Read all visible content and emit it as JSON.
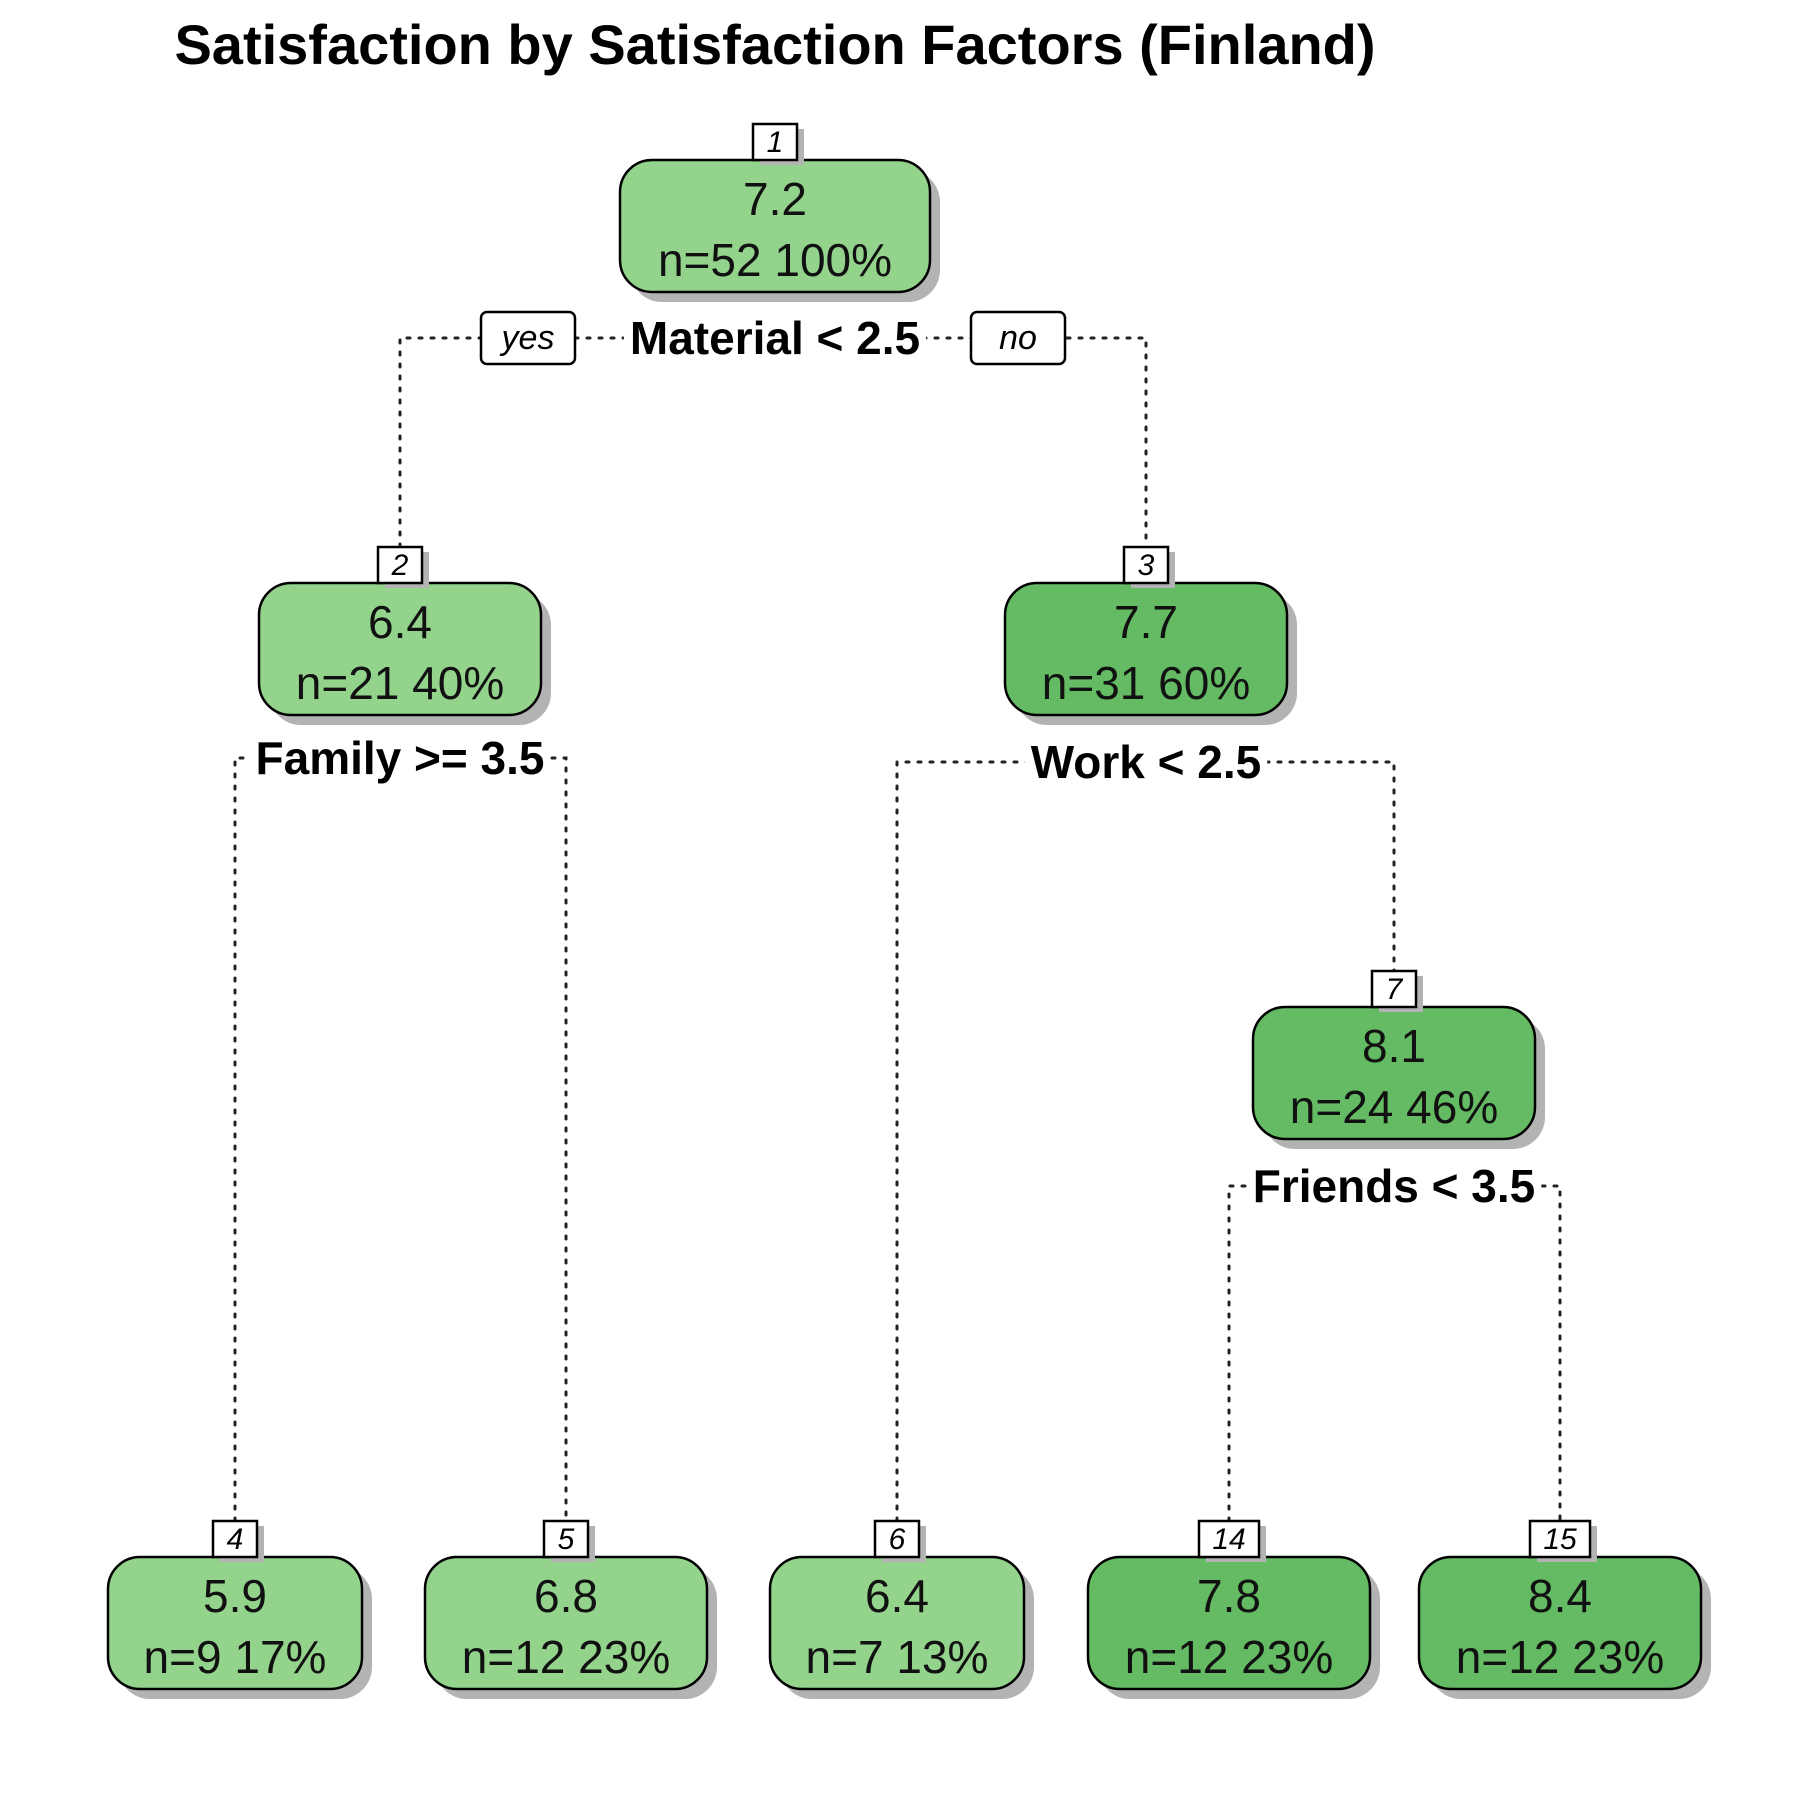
{
  "title": "Satisfaction by Satisfaction Factors (Finland)",
  "colors": {
    "light_green": "#93d38c",
    "dark_green": "#64bb64",
    "shadow": "#b3b3b3"
  },
  "labels": {
    "yes": "yes",
    "no": "no"
  },
  "nodes": [
    {
      "id": "1",
      "value": "7.2",
      "stats": "n=52  100%",
      "split": "Material < 2.5",
      "color": "light_green"
    },
    {
      "id": "2",
      "value": "6.4",
      "stats": "n=21  40%",
      "split": "Family >= 3.5",
      "color": "light_green"
    },
    {
      "id": "3",
      "value": "7.7",
      "stats": "n=31  60%",
      "split": "Work < 2.5",
      "color": "dark_green"
    },
    {
      "id": "7",
      "value": "8.1",
      "stats": "n=24  46%",
      "split": "Friends < 3.5",
      "color": "dark_green"
    },
    {
      "id": "4",
      "value": "5.9",
      "stats": "n=9  17%",
      "color": "light_green"
    },
    {
      "id": "5",
      "value": "6.8",
      "stats": "n=12  23%",
      "color": "light_green"
    },
    {
      "id": "6",
      "value": "6.4",
      "stats": "n=7  13%",
      "color": "light_green"
    },
    {
      "id": "14",
      "value": "7.8",
      "stats": "n=12  23%",
      "color": "dark_green"
    },
    {
      "id": "15",
      "value": "8.4",
      "stats": "n=12  23%",
      "color": "dark_green"
    }
  ]
}
